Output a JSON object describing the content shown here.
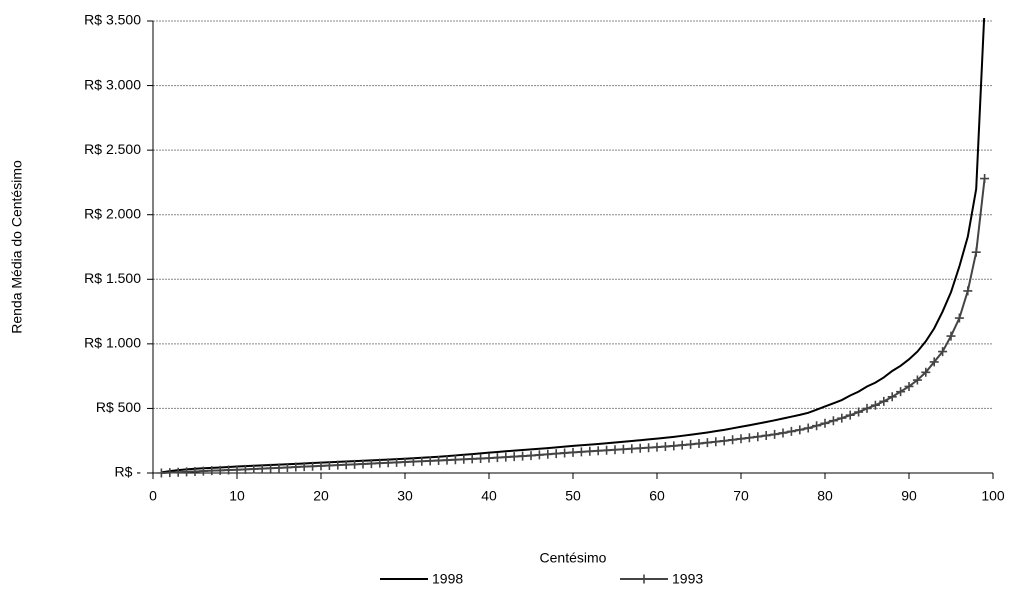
{
  "chart_data": {
    "type": "line",
    "x_label": "Centésimo",
    "y_label": "Renda Média do Centésimo",
    "x": [
      1,
      2,
      3,
      4,
      5,
      6,
      7,
      8,
      9,
      10,
      11,
      12,
      13,
      14,
      15,
      16,
      17,
      18,
      19,
      20,
      21,
      22,
      23,
      24,
      25,
      26,
      27,
      28,
      29,
      30,
      31,
      32,
      33,
      34,
      35,
      36,
      37,
      38,
      39,
      40,
      41,
      42,
      43,
      44,
      45,
      46,
      47,
      48,
      49,
      50,
      51,
      52,
      53,
      54,
      55,
      56,
      57,
      58,
      59,
      60,
      61,
      62,
      63,
      64,
      65,
      66,
      67,
      68,
      69,
      70,
      71,
      72,
      73,
      74,
      75,
      76,
      77,
      78,
      79,
      80,
      81,
      82,
      83,
      84,
      85,
      86,
      87,
      88,
      89,
      90,
      91,
      92,
      93,
      94,
      95,
      96,
      97,
      98,
      99
    ],
    "series": [
      {
        "name": "1998",
        "color": "#000000",
        "marker": "none",
        "values": [
          5,
          15,
          22,
          28,
          33,
          37,
          40,
          43,
          46,
          50,
          53,
          56,
          59,
          62,
          65,
          68,
          71,
          74,
          77,
          80,
          83,
          86,
          89,
          92,
          95,
          98,
          101,
          104,
          107,
          110,
          114,
          118,
          122,
          126,
          131,
          136,
          141,
          146,
          152,
          158,
          163,
          168,
          173,
          178,
          183,
          188,
          193,
          198,
          204,
          210,
          215,
          220,
          225,
          230,
          236,
          242,
          248,
          254,
          260,
          266,
          273,
          280,
          288,
          296,
          305,
          314,
          324,
          334,
          346,
          358,
          370,
          382,
          395,
          408,
          422,
          436,
          450,
          466,
          490,
          515,
          540,
          565,
          600,
          630,
          670,
          700,
          740,
          790,
          830,
          880,
          940,
          1020,
          1120,
          1250,
          1400,
          1600,
          1830,
          2200,
          3600
        ]
      },
      {
        "name": "1993",
        "color": "#444444",
        "marker": "plus",
        "values": [
          0,
          3,
          6,
          9,
          12,
          15,
          18,
          20,
          23,
          25,
          28,
          31,
          34,
          37,
          40,
          43,
          46,
          49,
          52,
          55,
          58,
          61,
          64,
          67,
          70,
          73,
          76,
          79,
          82,
          85,
          88,
          91,
          94,
          97,
          100,
          103,
          106,
          109,
          112,
          115,
          119,
          123,
          127,
          131,
          135,
          140,
          145,
          150,
          155,
          160,
          164,
          168,
          172,
          176,
          180,
          184,
          188,
          192,
          196,
          200,
          205,
          210,
          216,
          222,
          228,
          235,
          242,
          249,
          257,
          265,
          273,
          281,
          290,
          299,
          310,
          322,
          334,
          348,
          366,
          385,
          405,
          425,
          448,
          472,
          500,
          525,
          555,
          590,
          630,
          670,
          720,
          780,
          860,
          940,
          1060,
          1200,
          1410,
          1710,
          2280
        ]
      }
    ],
    "xlim": [
      0,
      100
    ],
    "xticks": [
      0,
      10,
      20,
      30,
      40,
      50,
      60,
      70,
      80,
      90,
      100
    ],
    "ylim": [
      0,
      3500
    ],
    "yticks": [
      {
        "value": 0,
        "label": "R$ -"
      },
      {
        "value": 500,
        "label": "R$ 500"
      },
      {
        "value": 1000,
        "label": "R$ 1.000"
      },
      {
        "value": 1500,
        "label": "R$ 1.500"
      },
      {
        "value": 2000,
        "label": "R$ 2.000"
      },
      {
        "value": 2500,
        "label": "R$ 2.500"
      },
      {
        "value": 3000,
        "label": "R$ 3.000"
      },
      {
        "value": 3500,
        "label": "R$ 3.500"
      }
    ],
    "grid": true,
    "legend": "bottom"
  }
}
